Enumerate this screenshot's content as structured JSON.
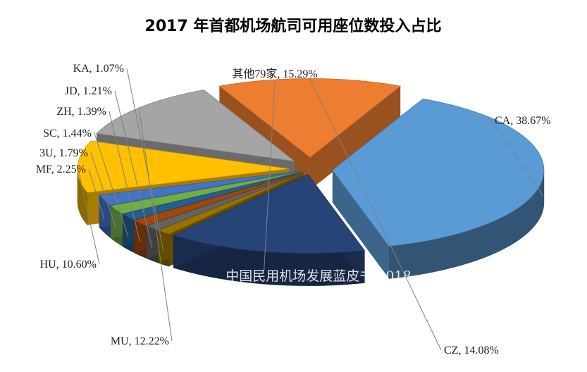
{
  "chart_data": {
    "type": "pie",
    "title": "2017 年首都机场航司可用座位数投入占比",
    "watermark": "中国民用机场发展蓝皮书 2018",
    "slices": [
      {
        "name": "CA",
        "value": 38.67,
        "label": "CA, 38.67%",
        "color": "#5b9bd5"
      },
      {
        "name": "CZ",
        "value": 14.08,
        "label": "CZ, 14.08%",
        "color": "#ed7d31"
      },
      {
        "name": "MU",
        "value": 12.22,
        "label": "MU, 12.22%",
        "color": "#a5a5a5"
      },
      {
        "name": "HU",
        "value": 10.6,
        "label": "HU, 10.60%",
        "color": "#ffc000"
      },
      {
        "name": "MF",
        "value": 2.25,
        "label": "MF, 2.25%",
        "color": "#4472c4"
      },
      {
        "name": "3U",
        "value": 1.79,
        "label": "3U, 1.79%",
        "color": "#70ad47"
      },
      {
        "name": "SC",
        "value": 1.44,
        "label": "SC, 1.44%",
        "color": "#255e91"
      },
      {
        "name": "ZH",
        "value": 1.39,
        "label": "ZH, 1.39%",
        "color": "#9e480e"
      },
      {
        "name": "JD",
        "value": 1.21,
        "label": "JD, 1.21%",
        "color": "#636363"
      },
      {
        "name": "KA",
        "value": 1.07,
        "label": "KA, 1.07%",
        "color": "#997300"
      },
      {
        "name": "其他79家",
        "value": 15.29,
        "label": "其他79家, 15.29%",
        "color": "#264478"
      }
    ]
  }
}
